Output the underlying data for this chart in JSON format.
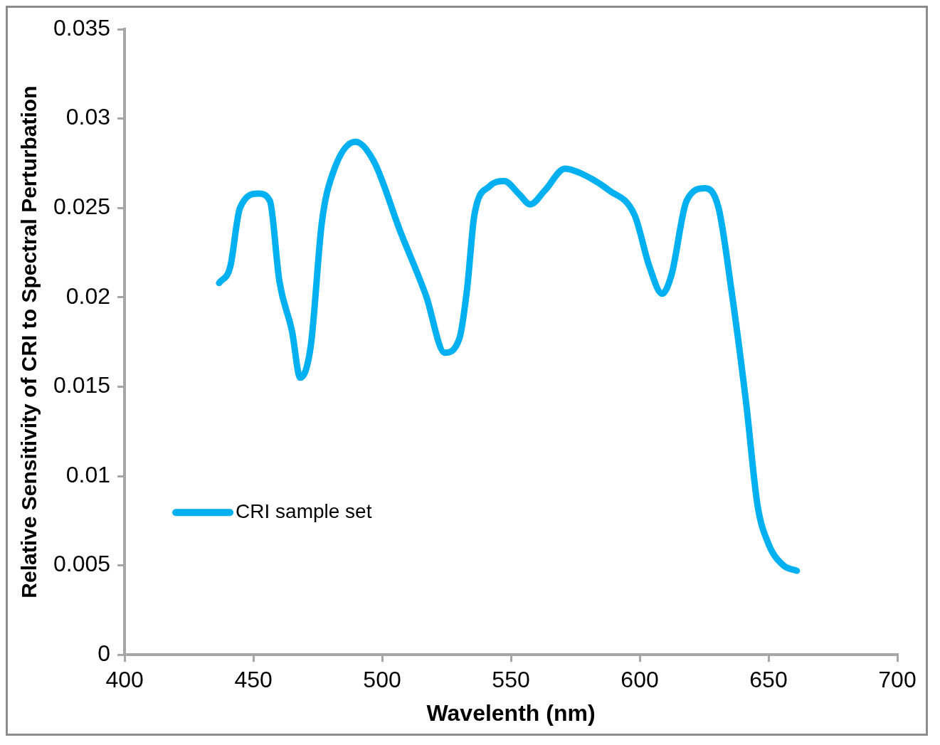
{
  "chart_data": {
    "type": "line",
    "xlabel": "Wavelenth (nm)",
    "ylabel": "Relative Sensitivity of CRI to Spectral Perturbation",
    "xlim": [
      400,
      700
    ],
    "xticks": [
      400,
      450,
      500,
      550,
      600,
      650,
      700
    ],
    "ylim": [
      0,
      0.035
    ],
    "yticks": [
      0,
      0.005,
      0.01,
      0.015,
      0.02,
      0.025,
      0.03,
      0.035
    ],
    "grid": false,
    "legend": "bottom left",
    "marker": "none",
    "line_style": "solid",
    "series": [
      {
        "name": "CRI sample set",
        "color": "#00b0f0",
        "x": [
          436.7,
          441,
          444.8,
          452,
          456.4,
          460.1,
          465,
          468.2,
          472.3,
          476.6,
          481,
          489.6,
          496.8,
          507,
          517,
          524.3,
          530,
          533,
          535.8,
          541.6,
          547.4,
          553,
          557.5,
          563.3,
          571,
          577.7,
          587.9,
          598,
          603.8,
          608.7,
          612.4,
          618.2,
          625.4,
          630.6,
          635.5,
          641.3,
          645.7,
          650,
          655.8,
          661
        ],
        "values": [
          0.0208,
          0.0217,
          0.025,
          0.0258,
          0.0254,
          0.0209,
          0.0181,
          0.0155,
          0.0173,
          0.0242,
          0.027,
          0.0287,
          0.0276,
          0.0237,
          0.0201,
          0.0169,
          0.0177,
          0.0205,
          0.0246,
          0.0262,
          0.0265,
          0.0258,
          0.0252,
          0.026,
          0.0272,
          0.0269,
          0.026,
          0.0246,
          0.0217,
          0.0202,
          0.0213,
          0.0254,
          0.0261,
          0.025,
          0.0205,
          0.0141,
          0.0084,
          0.0062,
          0.005,
          0.0047
        ]
      }
    ]
  }
}
